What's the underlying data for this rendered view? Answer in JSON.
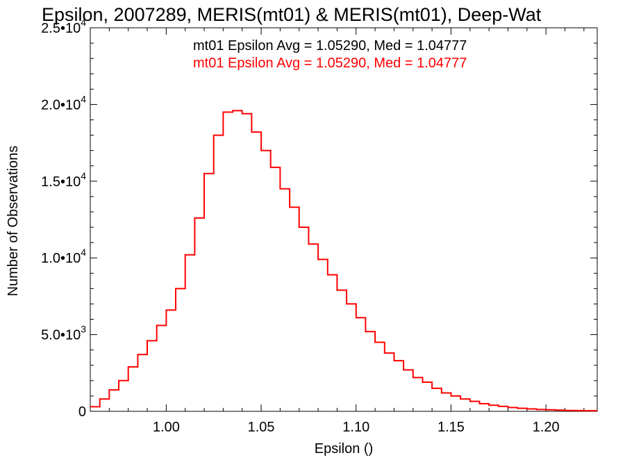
{
  "chart_data": {
    "type": "histogram-step",
    "title": "Epsilon, 2007289, MERIS(mt01) & MERIS(mt01), Deep-Wat",
    "xlabel": "Epsilon ()",
    "ylabel": "Number of Observations",
    "xlim": [
      0.96,
      1.227
    ],
    "ylim": [
      0,
      25000
    ],
    "x_ticks": [
      {
        "value": 1.0,
        "label": "1.00"
      },
      {
        "value": 1.05,
        "label": "1.05"
      },
      {
        "value": 1.1,
        "label": "1.10"
      },
      {
        "value": 1.15,
        "label": "1.15"
      },
      {
        "value": 1.2,
        "label": "1.20"
      }
    ],
    "y_ticks": [
      {
        "value": 0,
        "label": "0",
        "exp": ""
      },
      {
        "value": 5000,
        "label": "5.0•10",
        "exp": "3"
      },
      {
        "value": 10000,
        "label": "1.0•10",
        "exp": "4"
      },
      {
        "value": 15000,
        "label": "1.5•10",
        "exp": "4"
      },
      {
        "value": 20000,
        "label": "2.0•10",
        "exp": "4"
      },
      {
        "value": 25000,
        "label": "2.5•10",
        "exp": "4"
      }
    ],
    "annotations": [
      {
        "text": "mt01 Epsilon Avg = 1.05290, Med = 1.04777",
        "color": "#000000"
      },
      {
        "text": "mt01 Epsilon Avg = 1.05290, Med = 1.04777",
        "color": "#ff0000"
      }
    ],
    "series": [
      {
        "color": "#ff0000",
        "x": [
          0.96,
          0.965,
          0.97,
          0.975,
          0.98,
          0.985,
          0.99,
          0.995,
          1.0,
          1.005,
          1.01,
          1.015,
          1.02,
          1.025,
          1.03,
          1.035,
          1.04,
          1.045,
          1.05,
          1.055,
          1.06,
          1.065,
          1.07,
          1.075,
          1.08,
          1.085,
          1.09,
          1.095,
          1.1,
          1.105,
          1.11,
          1.115,
          1.12,
          1.125,
          1.13,
          1.135,
          1.14,
          1.145,
          1.15,
          1.155,
          1.16,
          1.165,
          1.17,
          1.175,
          1.18,
          1.185,
          1.19,
          1.195,
          1.2,
          1.205,
          1.21,
          1.215,
          1.22,
          1.227
        ],
        "y": [
          300,
          800,
          1400,
          2000,
          2900,
          3700,
          4600,
          5600,
          6600,
          8000,
          10200,
          12600,
          15500,
          18000,
          19500,
          19600,
          19400,
          18200,
          17000,
          15900,
          14500,
          13300,
          12000,
          10900,
          9900,
          8900,
          7900,
          7000,
          6100,
          5200,
          4500,
          3800,
          3300,
          2700,
          2200,
          1900,
          1500,
          1200,
          1000,
          800,
          650,
          500,
          400,
          320,
          250,
          200,
          160,
          120,
          100,
          80,
          60,
          50,
          40,
          30
        ]
      }
    ]
  }
}
